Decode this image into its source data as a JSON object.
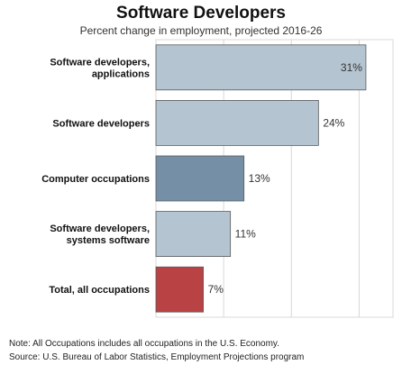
{
  "chart_data": {
    "type": "bar",
    "orientation": "horizontal",
    "title": "Software Developers",
    "subtitle": "Percent change in employment, projected 2016-26",
    "categories": [
      [
        "Software developers,",
        "applications"
      ],
      [
        "Software developers"
      ],
      [
        "Computer occupations"
      ],
      [
        "Software developers,",
        "systems software"
      ],
      [
        "Total, all occupations"
      ]
    ],
    "values": [
      31,
      24,
      13,
      11,
      7
    ],
    "value_labels": [
      "31%",
      "24%",
      "13%",
      "11%",
      "7%"
    ],
    "colors": [
      "#b4c4d0",
      "#b4c4d0",
      "#7590a6",
      "#b4c4d0",
      "#b84244"
    ],
    "xlim": [
      0,
      35
    ],
    "grid": true,
    "legend": "none"
  },
  "notes": {
    "note": "Note: All Occupations includes all occupations in the U.S. Economy.",
    "source": "Source: U.S. Bureau of Labor Statistics, Employment Projections program"
  }
}
